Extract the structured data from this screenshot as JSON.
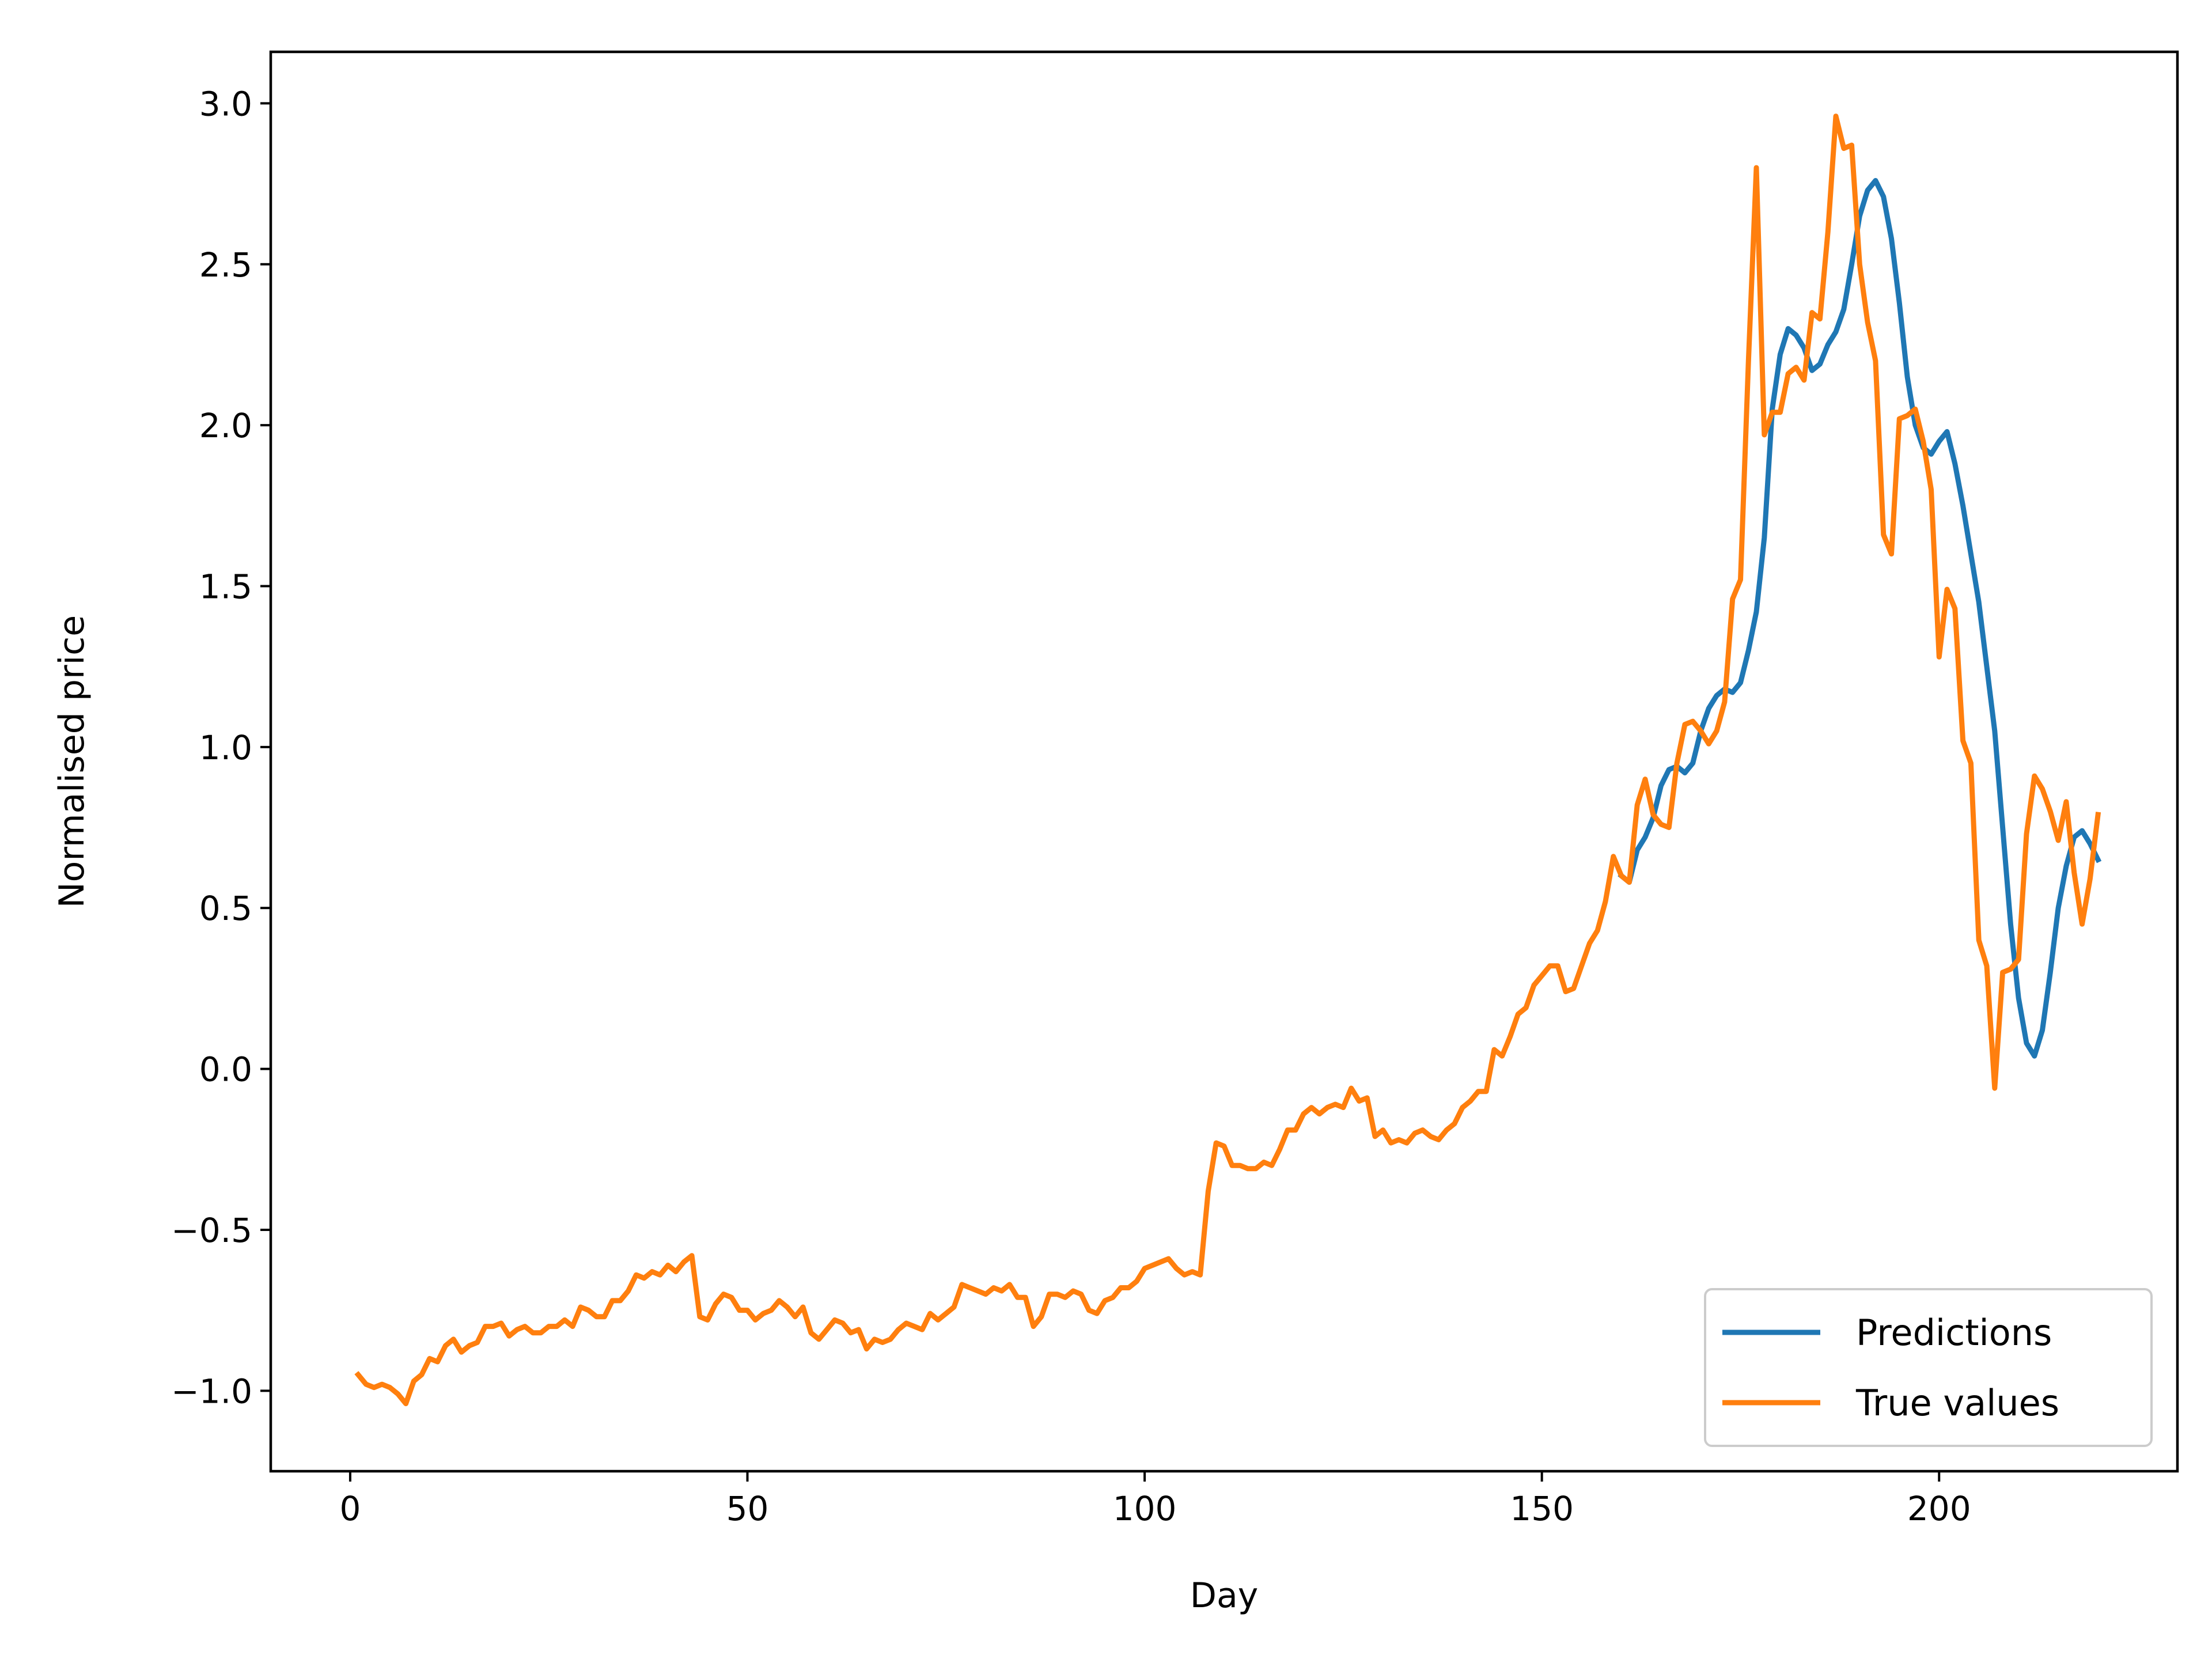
{
  "chart_data": {
    "type": "line",
    "title": "",
    "xlabel": "Day",
    "ylabel": "Normalised price",
    "xlim": [
      -10,
      230
    ],
    "ylim": [
      -1.25,
      3.16
    ],
    "xticks": [
      0,
      50,
      100,
      150,
      200
    ],
    "yticks": [
      -1.0,
      -0.5,
      0.0,
      0.5,
      1.0,
      1.5,
      2.0,
      2.5,
      3.0
    ],
    "xtick_labels": [
      "0",
      "50",
      "100",
      "150",
      "200"
    ],
    "ytick_labels": [
      "−1.0",
      "−0.5",
      "0.0",
      "0.5",
      "1.0",
      "1.5",
      "2.0",
      "2.5",
      "3.0"
    ],
    "grid": false,
    "legend_position": "lower-right",
    "series": [
      {
        "name": "Predictions",
        "color": "#1f77b4",
        "x": [
          160,
          161,
          162,
          163,
          164,
          165,
          166,
          167,
          168,
          169,
          170,
          171,
          172,
          173,
          174,
          175,
          176,
          177,
          178,
          179,
          180,
          181,
          182,
          183,
          184,
          185,
          186,
          187,
          188,
          189,
          190,
          191,
          192,
          193,
          194,
          195,
          196,
          197,
          198,
          199,
          200,
          201,
          202,
          203,
          204,
          205,
          206,
          207,
          208,
          209,
          210,
          211,
          212,
          213,
          214,
          215,
          216,
          217,
          218,
          219,
          220
        ],
        "y": [
          0.6,
          0.58,
          0.68,
          0.72,
          0.78,
          0.88,
          0.93,
          0.94,
          0.92,
          0.95,
          1.05,
          1.12,
          1.16,
          1.18,
          1.17,
          1.2,
          1.3,
          1.42,
          1.65,
          2.05,
          2.22,
          2.3,
          2.28,
          2.24,
          2.17,
          2.19,
          2.25,
          2.29,
          2.36,
          2.5,
          2.65,
          2.73,
          2.76,
          2.71,
          2.58,
          2.38,
          2.15,
          2.0,
          1.93,
          1.91,
          1.95,
          1.98,
          1.88,
          1.75,
          1.6,
          1.45,
          1.25,
          1.05,
          0.75,
          0.45,
          0.22,
          0.08,
          0.04,
          0.12,
          0.3,
          0.5,
          0.63,
          0.72,
          0.74,
          0.7,
          0.65
        ]
      },
      {
        "name": "True values",
        "color": "#ff7f0e",
        "x": [
          1,
          2,
          3,
          4,
          5,
          6,
          7,
          8,
          9,
          10,
          11,
          12,
          13,
          14,
          15,
          16,
          17,
          18,
          19,
          20,
          21,
          22,
          23,
          24,
          25,
          26,
          27,
          28,
          29,
          30,
          31,
          32,
          33,
          34,
          35,
          36,
          37,
          38,
          39,
          40,
          41,
          42,
          43,
          44,
          45,
          46,
          47,
          48,
          49,
          50,
          51,
          52,
          53,
          54,
          55,
          56,
          57,
          58,
          59,
          60,
          61,
          62,
          63,
          64,
          65,
          66,
          67,
          68,
          69,
          70,
          71,
          72,
          73,
          74,
          75,
          76,
          77,
          78,
          79,
          80,
          81,
          82,
          83,
          84,
          85,
          86,
          87,
          88,
          89,
          90,
          91,
          92,
          93,
          94,
          95,
          96,
          97,
          98,
          99,
          100,
          101,
          102,
          103,
          104,
          105,
          106,
          107,
          108,
          109,
          110,
          111,
          112,
          113,
          114,
          115,
          116,
          117,
          118,
          119,
          120,
          121,
          122,
          123,
          124,
          125,
          126,
          127,
          128,
          129,
          130,
          131,
          132,
          133,
          134,
          135,
          136,
          137,
          138,
          139,
          140,
          141,
          142,
          143,
          144,
          145,
          146,
          147,
          148,
          149,
          150,
          151,
          152,
          153,
          154,
          155,
          156,
          157,
          158,
          159,
          160,
          161,
          162,
          163,
          164,
          165,
          166,
          167,
          168,
          169,
          170,
          171,
          172,
          173,
          174,
          175,
          176,
          177,
          178,
          179,
          180,
          181,
          182,
          183,
          184,
          185,
          186,
          187,
          188,
          189,
          190,
          191,
          192,
          193,
          194,
          195,
          196,
          197,
          198,
          199,
          200,
          201,
          202,
          203,
          204,
          205,
          206,
          207,
          208,
          209,
          210,
          211,
          212,
          213,
          214,
          215,
          216,
          217,
          218,
          219,
          220
        ],
        "y": [
          -0.95,
          -0.98,
          -0.99,
          -0.98,
          -0.99,
          -1.01,
          -1.04,
          -0.97,
          -0.95,
          -0.9,
          -0.91,
          -0.86,
          -0.84,
          -0.88,
          -0.86,
          -0.85,
          -0.8,
          -0.8,
          -0.79,
          -0.83,
          -0.81,
          -0.8,
          -0.82,
          -0.82,
          -0.8,
          -0.8,
          -0.78,
          -0.8,
          -0.74,
          -0.75,
          -0.77,
          -0.77,
          -0.72,
          -0.72,
          -0.69,
          -0.64,
          -0.65,
          -0.63,
          -0.64,
          -0.61,
          -0.63,
          -0.6,
          -0.58,
          -0.77,
          -0.78,
          -0.73,
          -0.7,
          -0.71,
          -0.75,
          -0.75,
          -0.78,
          -0.76,
          -0.75,
          -0.72,
          -0.74,
          -0.77,
          -0.74,
          -0.82,
          -0.84,
          -0.81,
          -0.78,
          -0.79,
          -0.82,
          -0.81,
          -0.87,
          -0.84,
          -0.85,
          -0.84,
          -0.81,
          -0.79,
          -0.8,
          -0.81,
          -0.76,
          -0.78,
          -0.76,
          -0.74,
          -0.67,
          -0.68,
          -0.69,
          -0.7,
          -0.68,
          -0.69,
          -0.67,
          -0.71,
          -0.71,
          -0.8,
          -0.77,
          -0.7,
          -0.7,
          -0.71,
          -0.69,
          -0.7,
          -0.75,
          -0.76,
          -0.72,
          -0.71,
          -0.68,
          -0.68,
          -0.66,
          -0.62,
          -0.61,
          -0.6,
          -0.59,
          -0.62,
          -0.64,
          -0.63,
          -0.64,
          -0.38,
          -0.23,
          -0.24,
          -0.3,
          -0.3,
          -0.31,
          -0.31,
          -0.29,
          -0.3,
          -0.25,
          -0.19,
          -0.19,
          -0.14,
          -0.12,
          -0.14,
          -0.12,
          -0.11,
          -0.12,
          -0.06,
          -0.1,
          -0.09,
          -0.21,
          -0.19,
          -0.23,
          -0.22,
          -0.23,
          -0.2,
          -0.19,
          -0.21,
          -0.22,
          -0.19,
          -0.17,
          -0.12,
          -0.1,
          -0.07,
          -0.07,
          0.06,
          0.04,
          0.1,
          0.17,
          0.19,
          0.26,
          0.29,
          0.32,
          0.32,
          0.24,
          0.25,
          0.32,
          0.39,
          0.43,
          0.52,
          0.66,
          0.6,
          0.58,
          0.82,
          0.9,
          0.79,
          0.76,
          0.75,
          0.95,
          1.07,
          1.08,
          1.05,
          1.01,
          1.05,
          1.14,
          1.46,
          1.52,
          2.2,
          2.8,
          1.97,
          2.04,
          2.04,
          2.16,
          2.18,
          2.14,
          2.35,
          2.33,
          2.6,
          2.96,
          2.86,
          2.87,
          2.5,
          2.32,
          2.2,
          1.66,
          1.6,
          2.02,
          2.03,
          2.05,
          1.95,
          1.8,
          1.28,
          1.49,
          1.43,
          1.02,
          0.95,
          0.4,
          0.32,
          -0.06,
          0.3,
          0.31,
          0.34,
          0.73,
          0.91,
          0.87,
          0.8,
          0.71,
          0.83,
          0.61,
          0.45,
          0.59,
          0.79
        ]
      }
    ]
  }
}
